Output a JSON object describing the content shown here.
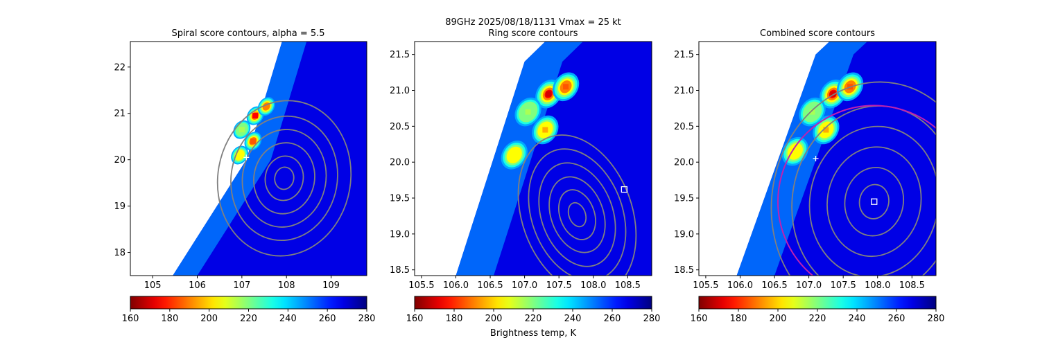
{
  "figure": {
    "suptitle_line1": "89GHz  2025/08/18/1131    Vmax = 25 kt",
    "colorbar_label": "Brightness temp, K",
    "colors": {
      "contour": "#808080",
      "ring_circle": "#c020b0",
      "marker": "#ffffff",
      "clear_area": "#ffffff",
      "frame": "#000000"
    }
  },
  "chart_data": [
    {
      "type": "heatmap",
      "title": "Spiral score contours, alpha =  5.5",
      "xlabel": "",
      "ylabel": "",
      "xlim": [
        104.5,
        109.8
      ],
      "ylim": [
        17.5,
        22.55
      ],
      "xticks": [
        "105",
        "106",
        "107",
        "108",
        "109"
      ],
      "xtick_values": [
        105,
        106,
        107,
        108,
        109
      ],
      "yticks": [
        "18",
        "19",
        "20",
        "21",
        "22"
      ],
      "ytick_values": [
        18,
        19,
        20,
        21,
        22
      ],
      "colormap": "jet_r",
      "value_range": [
        160,
        280
      ],
      "colorbar_ticks": [
        "160",
        "180",
        "200",
        "220",
        "240",
        "260",
        "280"
      ],
      "swath_edge": [
        [
          105.45,
          17.5
        ],
        [
          107.1,
          20.0
        ],
        [
          107.9,
          22.55
        ]
      ],
      "cold_cores": [
        {
          "x": 107.3,
          "y": 20.95,
          "tb": 175
        },
        {
          "x": 107.55,
          "y": 21.15,
          "tb": 190
        },
        {
          "x": 107.25,
          "y": 20.4,
          "tb": 185
        },
        {
          "x": 106.95,
          "y": 20.1,
          "tb": 205
        },
        {
          "x": 107.0,
          "y": 20.65,
          "tb": 215
        }
      ],
      "contour_center": {
        "x": 107.95,
        "y": 19.6
      },
      "markers": [
        {
          "shape": "plus",
          "x": 107.1,
          "y": 20.05
        }
      ]
    },
    {
      "type": "heatmap",
      "title": "Ring score contours",
      "xlabel": "",
      "ylabel": "",
      "xlim": [
        105.4,
        108.85
      ],
      "ylim": [
        18.42,
        21.68
      ],
      "xticks": [
        "105.5",
        "106.0",
        "106.5",
        "107.0",
        "107.5",
        "108.0",
        "108.5"
      ],
      "xtick_values": [
        105.5,
        106.0,
        106.5,
        107.0,
        107.5,
        108.0,
        108.5
      ],
      "yticks": [
        "18.5",
        "19.0",
        "19.5",
        "20.0",
        "20.5",
        "21.0",
        "21.5"
      ],
      "ytick_values": [
        18.5,
        19.0,
        19.5,
        20.0,
        20.5,
        21.0,
        21.5
      ],
      "colormap": "jet_r",
      "value_range": [
        160,
        280
      ],
      "colorbar_ticks": [
        "160",
        "180",
        "200",
        "220",
        "240",
        "260",
        "280"
      ],
      "swath_edge": [
        [
          106.0,
          18.42
        ],
        [
          107.0,
          21.4
        ],
        [
          107.3,
          21.68
        ]
      ],
      "cold_cores": [
        {
          "x": 107.35,
          "y": 20.95,
          "tb": 170
        },
        {
          "x": 107.6,
          "y": 21.05,
          "tb": 185
        },
        {
          "x": 107.3,
          "y": 20.45,
          "tb": 195
        },
        {
          "x": 106.85,
          "y": 20.1,
          "tb": 205
        },
        {
          "x": 107.05,
          "y": 20.7,
          "tb": 215
        }
      ],
      "contour_center": {
        "x": 108.0,
        "y": 19.35
      },
      "markers": [
        {
          "shape": "square",
          "x": 108.45,
          "y": 19.62
        }
      ]
    },
    {
      "type": "heatmap",
      "title": "Combined score contours",
      "xlabel": "",
      "ylabel": "",
      "xlim": [
        105.4,
        108.85
      ],
      "ylim": [
        18.42,
        21.68
      ],
      "xticks": [
        "105.5",
        "106.0",
        "106.5",
        "107.0",
        "107.5",
        "108.0",
        "108.5"
      ],
      "xtick_values": [
        105.5,
        106.0,
        106.5,
        107.0,
        107.5,
        108.0,
        108.5
      ],
      "yticks": [
        "18.5",
        "19.0",
        "19.5",
        "20.0",
        "20.5",
        "21.0",
        "21.5"
      ],
      "ytick_values": [
        18.5,
        19.0,
        19.5,
        20.0,
        20.5,
        21.0,
        21.5
      ],
      "colormap": "jet_r",
      "value_range": [
        160,
        280
      ],
      "colorbar_ticks": [
        "160",
        "180",
        "200",
        "220",
        "240",
        "260",
        "280"
      ],
      "swath_edge": [
        [
          105.95,
          18.42
        ],
        [
          107.1,
          21.5
        ],
        [
          107.3,
          21.68
        ]
      ],
      "cold_cores": [
        {
          "x": 107.35,
          "y": 20.95,
          "tb": 170
        },
        {
          "x": 107.6,
          "y": 21.05,
          "tb": 185
        },
        {
          "x": 107.25,
          "y": 20.45,
          "tb": 195
        },
        {
          "x": 106.8,
          "y": 20.15,
          "tb": 205
        },
        {
          "x": 107.05,
          "y": 20.7,
          "tb": 215
        }
      ],
      "contour_center": {
        "x": 107.95,
        "y": 19.45
      },
      "ring": {
        "x": 107.95,
        "y": 19.45,
        "radius_deg": 1.4
      },
      "markers": [
        {
          "shape": "square",
          "x": 107.95,
          "y": 19.45
        },
        {
          "shape": "plus",
          "x": 107.1,
          "y": 20.05
        }
      ]
    }
  ]
}
